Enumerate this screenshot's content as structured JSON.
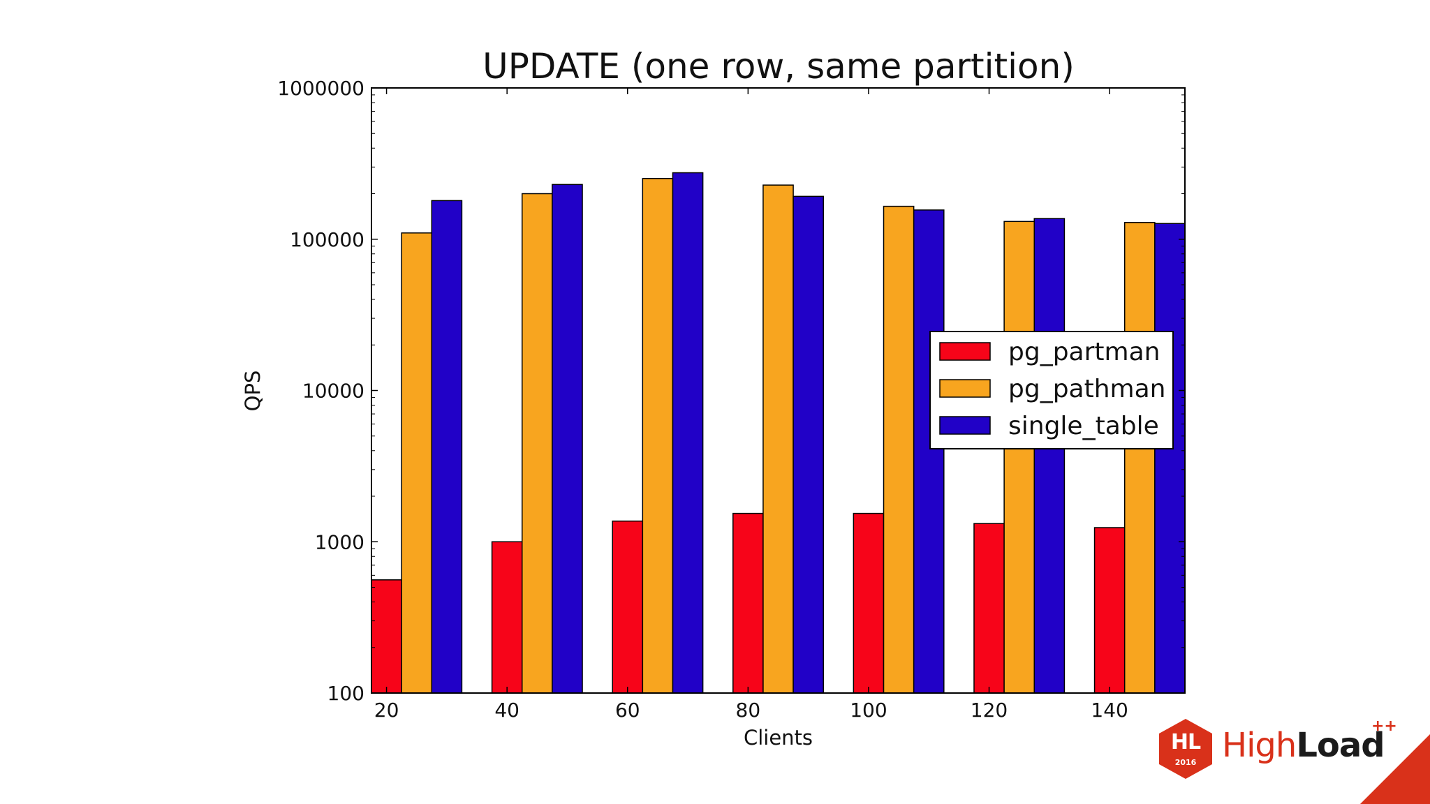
{
  "chart_data": {
    "type": "bar",
    "title": "UPDATE (one row, same partition)",
    "xlabel": "Clients",
    "ylabel": "QPS",
    "yscale": "log",
    "ylim": [
      100,
      1000000
    ],
    "yticks": [
      100,
      1000,
      10000,
      100000,
      1000000
    ],
    "ytick_labels": [
      "100",
      "1000",
      "10000",
      "100000",
      "1000000"
    ],
    "categories": [
      "20",
      "40",
      "60",
      "80",
      "100",
      "120",
      "140"
    ],
    "series": [
      {
        "name": "pg_partman",
        "color": "#f70419",
        "values": [
          560,
          1000,
          1370,
          1540,
          1540,
          1320,
          1240
        ]
      },
      {
        "name": "pg_pathman",
        "color": "#f8a51f",
        "values": [
          110000,
          200000,
          252000,
          228000,
          165000,
          131000,
          129000
        ]
      },
      {
        "name": "single_table",
        "color": "#2101c7",
        "values": [
          180000,
          230000,
          275000,
          192000,
          156000,
          137000,
          127000
        ]
      }
    ],
    "legend_position": "center-right",
    "grid": false
  },
  "branding": {
    "logo_mark": "HL",
    "logo_year": "2016",
    "logo_word_light": "High",
    "logo_word_bold": "Load",
    "logo_plus": "++",
    "accent_color": "#d9311a"
  }
}
